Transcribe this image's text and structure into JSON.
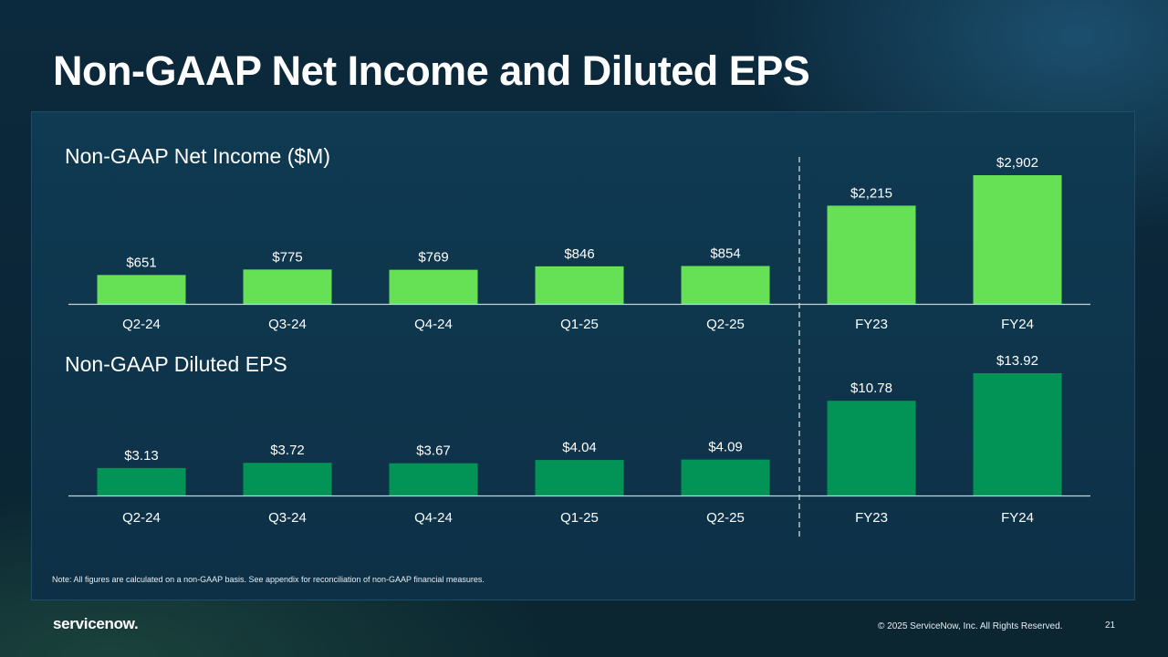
{
  "slide": {
    "title": "Non-GAAP Net Income and Diluted EPS",
    "note": "Note: All figures are calculated on a non-GAAP basis. See appendix for reconciliation of non-GAAP financial measures.",
    "logo": "servicenow.",
    "copyright": "© 2025 ServiceNow, Inc. All Rights Reserved.",
    "page_number": "21"
  },
  "colors": {
    "net_income_bar": "#66e055",
    "eps_bar": "#029456",
    "axis": "#c8d3d8",
    "divider": "#e0e6ea"
  },
  "chart_data": [
    {
      "type": "bar",
      "title": "Non-GAAP Net Income ($M)",
      "categories": [
        "Q2-24",
        "Q3-24",
        "Q4-24",
        "Q1-25",
        "Q2-25",
        "FY23",
        "FY24"
      ],
      "values": [
        651,
        775,
        769,
        846,
        854,
        2215,
        2902
      ],
      "value_labels": [
        "$651",
        "$775",
        "$769",
        "$846",
        "$854",
        "$2,215",
        "$2,902"
      ],
      "ylim": [
        0,
        3000
      ],
      "grid": false,
      "legend": "none"
    },
    {
      "type": "bar",
      "title": "Non-GAAP Diluted EPS",
      "categories": [
        "Q2-24",
        "Q3-24",
        "Q4-24",
        "Q1-25",
        "Q2-25",
        "FY23",
        "FY24"
      ],
      "values": [
        3.13,
        3.72,
        3.67,
        4.04,
        4.09,
        10.78,
        13.92
      ],
      "value_labels": [
        "$3.13",
        "$3.72",
        "$3.67",
        "$4.04",
        "$4.09",
        "$10.78",
        "$13.92"
      ],
      "ylim": [
        0,
        14
      ],
      "grid": false,
      "legend": "none"
    }
  ]
}
